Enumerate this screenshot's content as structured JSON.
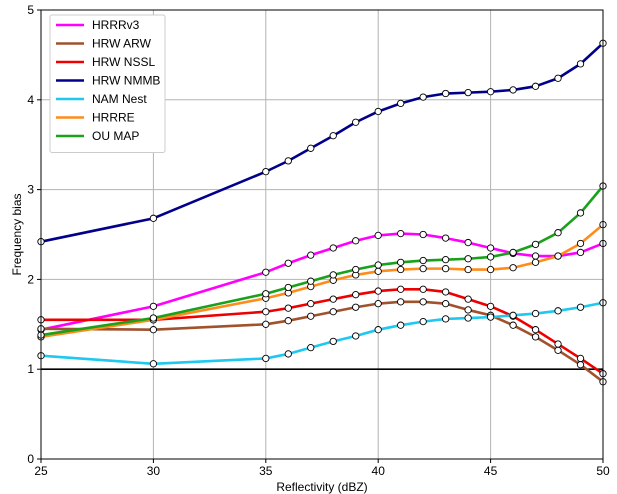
{
  "chart_data": {
    "type": "line",
    "title": "",
    "xlabel": "Reflectivity (dBZ)",
    "ylabel": "Frequency bias",
    "xlim": [
      25,
      50
    ],
    "ylim": [
      0,
      5
    ],
    "xticks": [
      25,
      30,
      35,
      40,
      45,
      50
    ],
    "yticks": [
      0,
      1,
      2,
      3,
      4,
      5
    ],
    "grid": true,
    "legend_position": "top-left",
    "reference_line": {
      "y": 1,
      "color": "#000000"
    },
    "x": [
      25,
      30,
      35,
      36,
      37,
      38,
      39,
      40,
      41,
      42,
      43,
      44,
      45,
      46,
      47,
      48,
      49,
      50
    ],
    "series": [
      {
        "name": "HRRRv3",
        "color": "#ff00ff",
        "values": [
          1.44,
          1.7,
          2.08,
          2.18,
          2.27,
          2.35,
          2.43,
          2.49,
          2.51,
          2.5,
          2.46,
          2.41,
          2.35,
          2.29,
          2.26,
          2.26,
          2.3,
          2.4
        ]
      },
      {
        "name": "HRW ARW",
        "color": "#a0522d",
        "values": [
          1.45,
          1.44,
          1.5,
          1.54,
          1.59,
          1.64,
          1.69,
          1.73,
          1.75,
          1.75,
          1.73,
          1.66,
          1.6,
          1.49,
          1.36,
          1.21,
          1.05,
          0.86
        ]
      },
      {
        "name": "HRW NSSL",
        "color": "#ee0000",
        "values": [
          1.55,
          1.55,
          1.64,
          1.68,
          1.73,
          1.78,
          1.83,
          1.87,
          1.89,
          1.89,
          1.86,
          1.78,
          1.7,
          1.59,
          1.44,
          1.28,
          1.12,
          0.95
        ]
      },
      {
        "name": "HRW NMMB",
        "color": "#00008b",
        "values": [
          2.42,
          2.68,
          3.2,
          3.32,
          3.46,
          3.6,
          3.75,
          3.87,
          3.96,
          4.03,
          4.07,
          4.08,
          4.09,
          4.11,
          4.15,
          4.24,
          4.4,
          4.63
        ]
      },
      {
        "name": "NAM Nest",
        "color": "#1ec8f0",
        "values": [
          1.15,
          1.06,
          1.12,
          1.17,
          1.24,
          1.31,
          1.37,
          1.44,
          1.49,
          1.53,
          1.56,
          1.57,
          1.58,
          1.6,
          1.62,
          1.65,
          1.69,
          1.74
        ]
      },
      {
        "name": "HRRRE",
        "color": "#ff8c1a",
        "values": [
          1.36,
          1.55,
          1.79,
          1.85,
          1.92,
          1.99,
          2.05,
          2.09,
          2.11,
          2.12,
          2.12,
          2.11,
          2.11,
          2.13,
          2.19,
          2.26,
          2.4,
          2.61
        ]
      },
      {
        "name": "OU MAP",
        "color": "#1aa01a",
        "values": [
          1.38,
          1.57,
          1.84,
          1.91,
          1.98,
          2.05,
          2.11,
          2.16,
          2.19,
          2.21,
          2.22,
          2.23,
          2.25,
          2.3,
          2.39,
          2.52,
          2.74,
          3.04
        ]
      }
    ]
  }
}
